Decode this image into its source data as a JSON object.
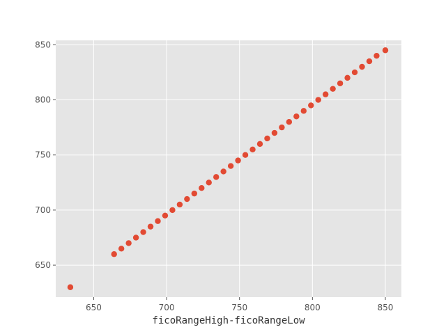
{
  "chart_data": {
    "type": "scatter",
    "title": "",
    "xlabel": "ficoRangeHigh-ficoRangeLow",
    "ylabel": "",
    "xlim": [
      624,
      861
    ],
    "ylim": [
      621,
      854
    ],
    "x_ticks": [
      650,
      700,
      750,
      800,
      850
    ],
    "y_ticks": [
      650,
      700,
      750,
      800,
      850
    ],
    "x_tick_labels": [
      "650",
      "700",
      "750",
      "800",
      "850"
    ],
    "y_tick_labels": [
      "650",
      "700",
      "750",
      "800",
      "850"
    ],
    "grid": true,
    "legend": "none",
    "colors": {
      "background": "#e5e5e5",
      "grid": "#ffffff",
      "marker": "#e24a33"
    },
    "series": [
      {
        "x": [
          634,
          664,
          669,
          674,
          679,
          684,
          689,
          694,
          699,
          704,
          709,
          714,
          719,
          724,
          729,
          734,
          739,
          744,
          749,
          754,
          759,
          764,
          769,
          774,
          779,
          784,
          789,
          794,
          799,
          804,
          809,
          814,
          819,
          824,
          829,
          834,
          839,
          844,
          850
        ],
        "y": [
          630,
          660,
          665,
          670,
          675,
          680,
          685,
          690,
          695,
          700,
          705,
          710,
          715,
          720,
          725,
          730,
          735,
          740,
          745,
          750,
          755,
          760,
          765,
          770,
          775,
          780,
          785,
          790,
          795,
          800,
          805,
          810,
          815,
          820,
          825,
          830,
          835,
          840,
          845
        ]
      }
    ]
  }
}
